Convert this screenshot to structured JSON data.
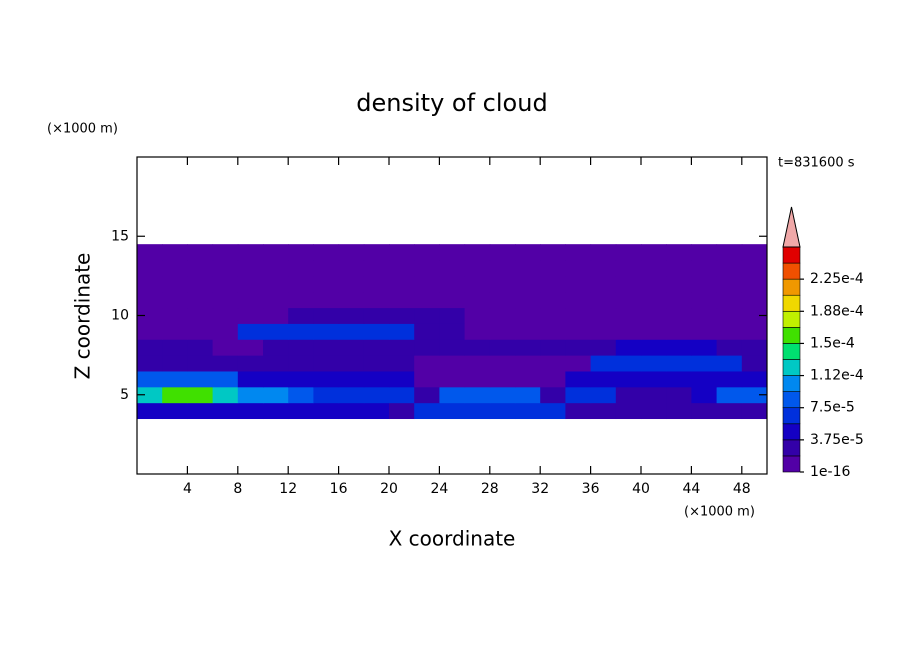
{
  "chart_data": {
    "type": "contour",
    "title": "density of cloud",
    "xlabel": "X coordinate",
    "ylabel": "Z coordinate",
    "x_unit": "(×1000 m)",
    "y_unit": "(×1000 m)",
    "annotation": "t=831600 s",
    "xlim": [
      0,
      50
    ],
    "ylim": [
      0,
      20
    ],
    "xticks": [
      4,
      8,
      12,
      16,
      20,
      24,
      28,
      32,
      36,
      40,
      44,
      48
    ],
    "yticks": [
      5,
      10,
      15
    ],
    "x": [
      1,
      3,
      5,
      7,
      9,
      11,
      13,
      15,
      17,
      19,
      21,
      23,
      25,
      27,
      29,
      31,
      33,
      35,
      37,
      39,
      41,
      43,
      45,
      47,
      49
    ],
    "y": [
      4,
      5,
      6,
      7,
      8,
      9,
      10,
      11,
      12,
      13,
      14
    ],
    "z": [
      [
        5e-05,
        5e-05,
        5e-05,
        5e-05,
        5e-05,
        5e-05,
        5e-05,
        5e-05,
        5e-05,
        5e-05,
        2e-05,
        6e-05,
        6e-05,
        6e-05,
        6e-05,
        6e-05,
        6e-05,
        2e-05,
        3e-05,
        3e-05,
        3e-05,
        3e-05,
        3e-05,
        3e-05,
        3e-05
      ],
      [
        0.00013,
        0.00015,
        0.00016,
        0.00012,
        0.0001,
        0.00011,
        9e-05,
        6e-05,
        6e-05,
        6e-05,
        6e-05,
        2e-05,
        9e-05,
        9e-05,
        9e-05,
        9e-05,
        3e-05,
        6e-05,
        6e-05,
        3e-05,
        3e-05,
        3e-05,
        5e-05,
        8e-05,
        9e-05
      ],
      [
        8e-05,
        8e-05,
        8e-05,
        8e-05,
        4e-05,
        4e-05,
        4e-05,
        4e-05,
        4e-05,
        4e-05,
        4e-05,
        1e-16,
        1e-16,
        1e-16,
        1e-16,
        1e-16,
        1e-16,
        5e-05,
        5e-05,
        5e-05,
        5e-05,
        5e-05,
        5e-05,
        5e-05,
        5e-05
      ],
      [
        3e-05,
        3e-05,
        3e-05,
        3e-05,
        2e-05,
        2e-05,
        2e-05,
        2e-05,
        2e-05,
        2e-05,
        2e-05,
        1e-16,
        1e-16,
        1e-16,
        1e-16,
        1e-16,
        1e-16,
        1e-16,
        6e-05,
        6e-05,
        6e-05,
        6e-05,
        6e-05,
        6e-05,
        3e-05
      ],
      [
        2e-05,
        2e-05,
        2e-05,
        1e-16,
        1e-16,
        3e-05,
        3e-05,
        3e-05,
        3e-05,
        3e-05,
        2e-05,
        2e-05,
        2e-05,
        2e-05,
        2e-05,
        2e-05,
        2e-05,
        2e-05,
        2e-05,
        4e-05,
        4e-05,
        4e-05,
        4e-05,
        2e-05,
        2e-05
      ],
      [
        1e-16,
        1e-16,
        1e-16,
        1e-16,
        6e-05,
        6e-05,
        6e-05,
        6e-05,
        6e-05,
        6e-05,
        6e-05,
        3e-05,
        3e-05,
        1e-16,
        1e-16,
        1e-16,
        1e-16,
        1e-16,
        1e-16,
        1e-16,
        1e-16,
        1e-16,
        1e-16,
        1e-16,
        1e-16
      ],
      [
        1e-16,
        1e-16,
        1e-16,
        1e-16,
        1e-16,
        1e-16,
        3e-05,
        3e-05,
        3e-05,
        3e-05,
        3e-05,
        3e-05,
        2e-05,
        1e-16,
        1e-16,
        1e-16,
        1e-16,
        1e-16,
        1e-16,
        1e-16,
        1e-16,
        1e-16,
        1e-16,
        1e-16,
        1e-16
      ],
      [
        1e-16,
        1e-16,
        1e-16,
        1e-16,
        1e-16,
        1e-16,
        1e-16,
        1e-16,
        1e-16,
        1e-16,
        1e-16,
        1e-16,
        1e-16,
        1e-16,
        1e-16,
        1e-16,
        1e-16,
        1e-16,
        1e-16,
        1e-16,
        1e-16,
        1e-16,
        1e-16,
        1e-16,
        1e-16
      ],
      [
        1e-16,
        1e-16,
        1e-16,
        1e-16,
        1e-16,
        1e-16,
        1e-16,
        1e-16,
        1e-16,
        1e-16,
        1e-16,
        1e-16,
        1e-16,
        1e-16,
        1e-16,
        1e-16,
        1e-16,
        1e-16,
        1e-16,
        1e-16,
        1e-16,
        1e-16,
        1e-16,
        1e-16,
        1e-16
      ],
      [
        1e-16,
        1e-16,
        1e-16,
        1e-16,
        1e-16,
        1e-16,
        1e-16,
        1e-16,
        1e-16,
        1e-16,
        1e-16,
        1e-16,
        1e-16,
        1e-16,
        1e-16,
        1e-16,
        1e-16,
        1e-16,
        1e-16,
        1e-16,
        1e-16,
        1e-16,
        1e-16,
        1e-16,
        1e-16
      ],
      [
        1e-16,
        1e-16,
        1e-16,
        1e-16,
        1e-16,
        1e-16,
        1e-16,
        1e-16,
        1e-16,
        1e-16,
        1e-16,
        1e-16,
        1e-16,
        1e-16,
        1e-16,
        1e-16,
        1e-16,
        1e-16,
        1e-16,
        1e-16,
        1e-16,
        1e-16,
        1e-16,
        1e-16,
        1e-16
      ]
    ],
    "levels": [
      1e-16,
      1.875e-05,
      3.75e-05,
      5.625e-05,
      7.5e-05,
      9.375e-05,
      0.000112,
      0.00013125,
      0.00015,
      0.00016875,
      0.000188,
      0.00020625,
      0.000225,
      0.00024375
    ],
    "colors": [
      "#5200a6",
      "#3300a8",
      "#1400c4",
      "#0030dc",
      "#0058ec",
      "#0088f0",
      "#00c8c4",
      "#00e070",
      "#40e000",
      "#c0f000",
      "#f0d800",
      "#f09800",
      "#f05000",
      "#e00000"
    ],
    "extend_color": "#f0a8a8",
    "colorbar_ticks": [
      1e-16,
      {
        "value": 3.75e-05,
        "label": "3.75e-5"
      },
      {
        "value": 7.5e-05,
        "label": "7.5e-5"
      },
      {
        "value": 0.000112,
        "label": "1.12e-4"
      },
      {
        "value": 0.00015,
        "label": "1.5e-4"
      },
      {
        "value": 0.000188,
        "label": "1.88e-4"
      },
      {
        "value": 0.000225,
        "label": "2.25e-4"
      }
    ]
  }
}
